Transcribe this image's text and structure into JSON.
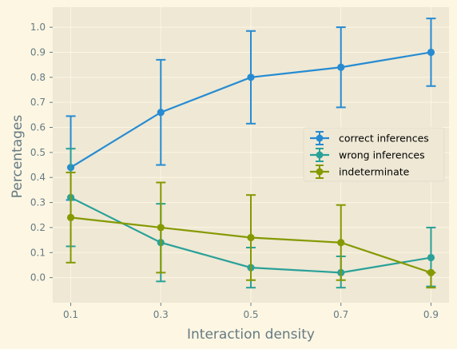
{
  "chart_data": {
    "type": "line",
    "xlabel": "Interaction density",
    "ylabel": "Percentages",
    "x": [
      0.1,
      0.3,
      0.5,
      0.7,
      0.9
    ],
    "x_tick_labels": [
      "0.1",
      "0.3",
      "0.5",
      "0.7",
      "0.9"
    ],
    "xlim": [
      0.06,
      0.94
    ],
    "ylim": [
      -0.1,
      1.08
    ],
    "y_ticks": [
      0.0,
      0.1,
      0.2,
      0.3,
      0.4,
      0.5,
      0.6,
      0.7,
      0.8,
      0.9,
      1.0
    ],
    "y_tick_labels": [
      "0.0",
      "0.1",
      "0.2",
      "0.3",
      "0.4",
      "0.5",
      "0.6",
      "0.7",
      "0.8",
      "0.9",
      "1.0"
    ],
    "grid": true,
    "legend_position": "center-right",
    "series": [
      {
        "name": "correct inferences",
        "color": "#268bd2",
        "values": [
          0.44,
          0.66,
          0.8,
          0.84,
          0.9
        ],
        "error_low": [
          0.31,
          0.45,
          0.615,
          0.68,
          0.765
        ],
        "error_high": [
          0.645,
          0.87,
          0.985,
          1.0,
          1.035
        ]
      },
      {
        "name": "wrong inferences",
        "color": "#2aa198",
        "values": [
          0.32,
          0.14,
          0.04,
          0.02,
          0.08
        ],
        "error_low": [
          0.125,
          -0.015,
          -0.04,
          -0.04,
          -0.035
        ],
        "error_high": [
          0.515,
          0.295,
          0.12,
          0.085,
          0.2
        ]
      },
      {
        "name": "indeterminate",
        "color": "#859900",
        "values": [
          0.24,
          0.2,
          0.16,
          0.14,
          0.02
        ],
        "error_low": [
          0.06,
          0.02,
          -0.01,
          -0.01,
          -0.04
        ],
        "error_high": [
          0.42,
          0.38,
          0.33,
          0.29,
          0.02
        ]
      }
    ],
    "colors": {
      "page_background": "#fdf6e3",
      "plot_background": "#eee8d5",
      "grid": "#fdf6e3",
      "text": "#657b83"
    }
  }
}
